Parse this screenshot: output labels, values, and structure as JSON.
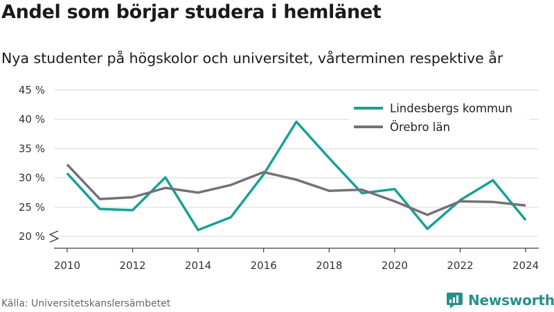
{
  "header": {
    "title": "Andel som börjar studera i hemlänet",
    "subtitle": "Nya studenter på högskolor och universitet, vårterminen respektive år"
  },
  "footer": {
    "source": "Källa: Universitetskanslersämbetet",
    "brand": "Newsworthy"
  },
  "chart_data": {
    "type": "line",
    "title": "Andel som börjar studera i hemlänet",
    "subtitle": "Nya studenter på högskolor och universitet, vårterminen respektive år",
    "x": [
      2010,
      2011,
      2012,
      2013,
      2014,
      2015,
      2016,
      2017,
      2018,
      2019,
      2020,
      2021,
      2022,
      2023,
      2024
    ],
    "x_ticks": [
      2010,
      2012,
      2014,
      2016,
      2018,
      2020,
      2022,
      2024
    ],
    "y_ticks": [
      20,
      25,
      30,
      35,
      40,
      45
    ],
    "y_tick_labels": [
      "20 %",
      "25 %",
      "30 %",
      "35 %",
      "40 %",
      "45 %"
    ],
    "ylim": [
      18,
      45
    ],
    "xlim": [
      2009.6,
      2024.4
    ],
    "axis_break": true,
    "grid": true,
    "legend_position": "top-right",
    "series": [
      {
        "name": "Lindesbergs kommun",
        "color": "#16a194",
        "values": [
          30.8,
          24.7,
          24.5,
          30.1,
          21.1,
          23.3,
          30.6,
          39.6,
          33.4,
          27.4,
          28.1,
          21.3,
          26.2,
          29.6,
          22.8
        ]
      },
      {
        "name": "Örebro län",
        "color": "#757078",
        "values": [
          32.3,
          26.4,
          26.7,
          28.3,
          27.5,
          28.8,
          31.0,
          29.7,
          27.8,
          28.0,
          26.0,
          23.7,
          26.0,
          25.9,
          25.3
        ]
      }
    ]
  }
}
